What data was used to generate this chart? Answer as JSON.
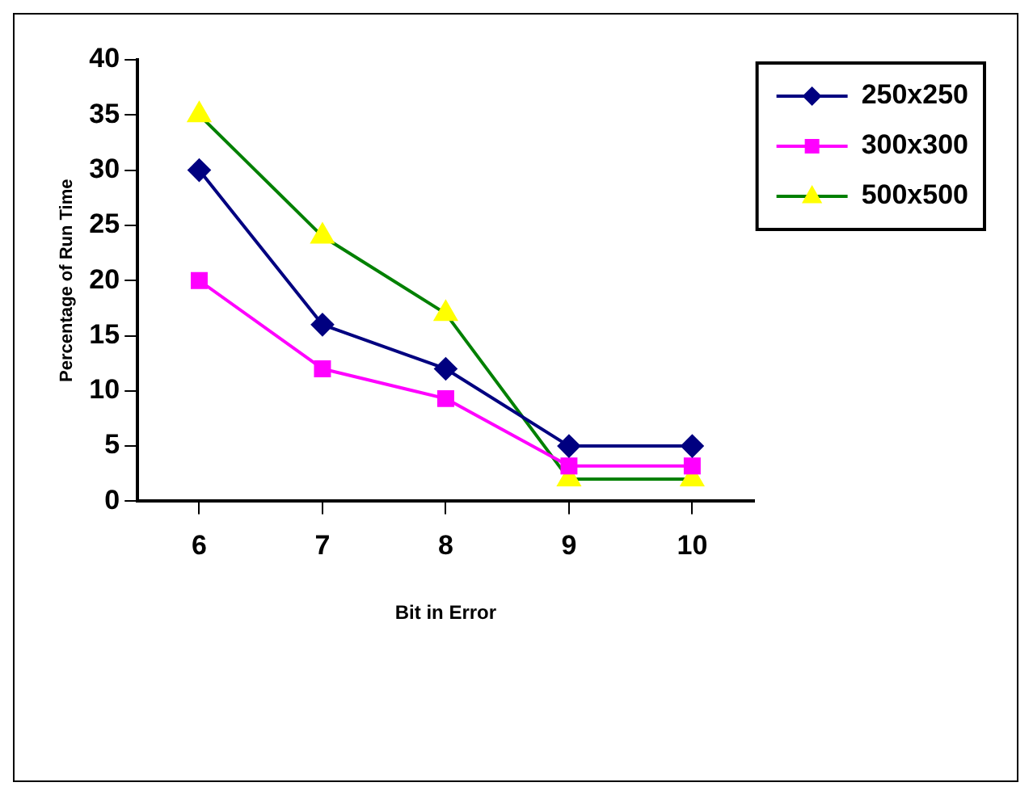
{
  "chart_data": {
    "type": "line",
    "xlabel": "Bit in Error",
    "ylabel": "Percentage of Run Time",
    "categories": [
      "6",
      "7",
      "8",
      "9",
      "10"
    ],
    "series": [
      {
        "name": "250x250",
        "color": "#000080",
        "marker": "diamond",
        "values": [
          30,
          16,
          12,
          5,
          5
        ]
      },
      {
        "name": "300x300",
        "color": "#ff00ff",
        "marker": "square",
        "values": [
          20,
          12,
          9.3,
          3.2,
          3.2
        ]
      },
      {
        "name": "500x500",
        "color": "#008000",
        "colors": [
          "#ffff00",
          "#ffff00",
          "#ffff00",
          "#ffff00",
          "#ffff00"
        ],
        "marker": "triangle",
        "values": [
          35,
          24,
          17,
          2,
          2
        ]
      }
    ],
    "ylim": [
      0,
      40
    ],
    "yticks": [
      0,
      5,
      10,
      15,
      20,
      25,
      30,
      35,
      40
    ],
    "grid": false,
    "legend": "top right"
  }
}
